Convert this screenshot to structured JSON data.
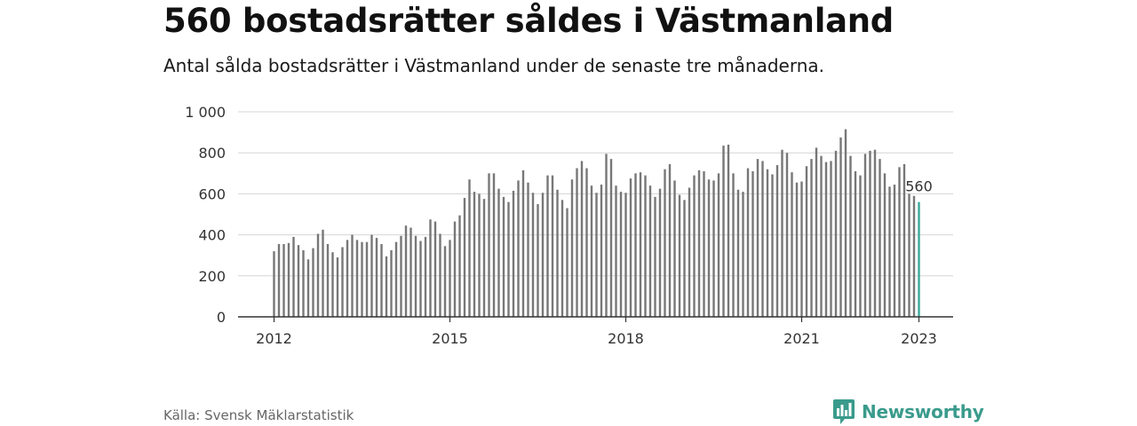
{
  "header": {
    "title": "560 bostadsrätter såldes i Västmanland",
    "subtitle": "Antal sålda bostadsrätter i Västmanland under de senaste tre månaderna."
  },
  "footer": {
    "source": "Källa: Svensk Mäklarstatistik",
    "brand": "Newsworthy"
  },
  "colors": {
    "bar": "#777777",
    "highlight": "#3aa99a",
    "grid": "#d6d6d6",
    "axis": "#333333",
    "brand": "#3a9b8c"
  },
  "chart_data": {
    "type": "bar",
    "title": "",
    "xlabel": "",
    "ylabel": "",
    "ylim": [
      0,
      1000
    ],
    "yticks": [
      0,
      200,
      400,
      600,
      800,
      1000
    ],
    "ytick_labels": [
      "0",
      "200",
      "400",
      "600",
      "800",
      "1 000"
    ],
    "xticks": [
      2012,
      2015,
      2018,
      2021,
      2023
    ],
    "xtick_labels": [
      "2012",
      "2015",
      "2018",
      "2021",
      "2023"
    ],
    "grid": true,
    "series": [
      {
        "start": "2012-01",
        "frequency": "monthly",
        "values": [
          320,
          355,
          355,
          360,
          390,
          350,
          325,
          280,
          335,
          405,
          425,
          355,
          315,
          290,
          340,
          375,
          400,
          375,
          365,
          365,
          400,
          385,
          355,
          295,
          325,
          365,
          395,
          445,
          435,
          395,
          370,
          390,
          475,
          465,
          405,
          345,
          375,
          465,
          495,
          580,
          670,
          610,
          600,
          575,
          700,
          700,
          625,
          585,
          560,
          615,
          665,
          715,
          655,
          605,
          550,
          605,
          690,
          690,
          620,
          570,
          530,
          670,
          725,
          760,
          725,
          640,
          605,
          645,
          795,
          770,
          640,
          610,
          605,
          675,
          700,
          705,
          690,
          640,
          585,
          625,
          720,
          745,
          665,
          595,
          570,
          630,
          690,
          715,
          710,
          670,
          665,
          700,
          835,
          840,
          700,
          620,
          610,
          725,
          710,
          770,
          760,
          720,
          695,
          740,
          815,
          800,
          705,
          655,
          660,
          735,
          770,
          825,
          785,
          755,
          760,
          810,
          875,
          915,
          785,
          710,
          690,
          795,
          810,
          815,
          770,
          700,
          635,
          645,
          730,
          745,
          600,
          590,
          560
        ]
      }
    ],
    "highlight": {
      "date": "2023-01",
      "value": 560,
      "label": "560"
    }
  }
}
